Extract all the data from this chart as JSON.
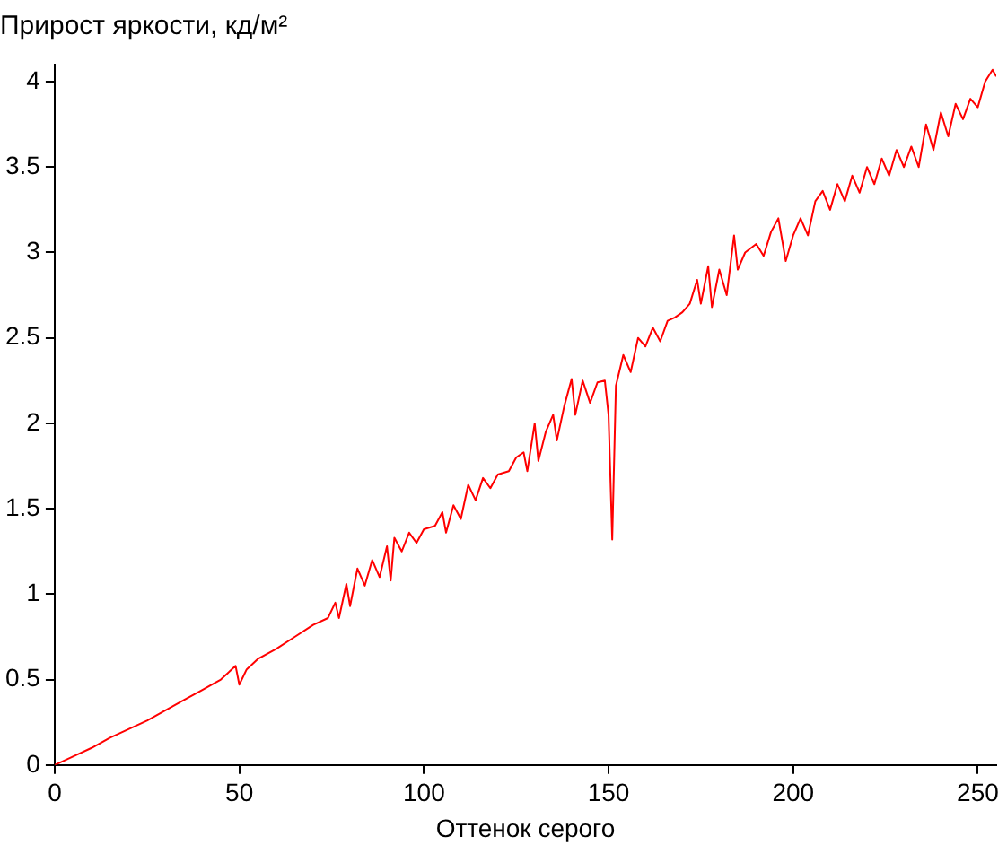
{
  "chart_data": {
    "type": "line",
    "title": "Прирост яркости, кд/м²",
    "xlabel": "Оттенок серого",
    "x": [
      0,
      3,
      6,
      10,
      15,
      20,
      25,
      30,
      35,
      40,
      45,
      49,
      50,
      52,
      55,
      60,
      65,
      70,
      74,
      76,
      77,
      79,
      80,
      82,
      84,
      86,
      88,
      90,
      91,
      92,
      94,
      96,
      98,
      100,
      103,
      105,
      106,
      108,
      110,
      112,
      114,
      116,
      118,
      120,
      123,
      125,
      127,
      128,
      130,
      131,
      133,
      135,
      136,
      138,
      140,
      141,
      143,
      145,
      147,
      149,
      150,
      151,
      152,
      154,
      156,
      158,
      160,
      162,
      164,
      166,
      168,
      170,
      172,
      174,
      175,
      177,
      178,
      180,
      182,
      184,
      185,
      187,
      190,
      192,
      194,
      196,
      198,
      200,
      202,
      204,
      206,
      208,
      210,
      212,
      214,
      216,
      218,
      220,
      222,
      224,
      226,
      228,
      230,
      232,
      234,
      236,
      238,
      240,
      242,
      244,
      246,
      248,
      250,
      252,
      254,
      255
    ],
    "series": [
      {
        "color": "#ff0000",
        "values": [
          0,
          0.03,
          0.06,
          0.1,
          0.16,
          0.21,
          0.26,
          0.32,
          0.38,
          0.44,
          0.5,
          0.58,
          0.47,
          0.56,
          0.62,
          0.68,
          0.75,
          0.82,
          0.86,
          0.95,
          0.86,
          1.06,
          0.93,
          1.15,
          1.05,
          1.2,
          1.1,
          1.28,
          1.08,
          1.33,
          1.25,
          1.36,
          1.3,
          1.38,
          1.4,
          1.48,
          1.36,
          1.52,
          1.44,
          1.64,
          1.55,
          1.68,
          1.62,
          1.7,
          1.72,
          1.8,
          1.83,
          1.72,
          2.0,
          1.78,
          1.95,
          2.05,
          1.9,
          2.1,
          2.26,
          2.05,
          2.25,
          2.12,
          2.24,
          2.25,
          2.05,
          1.32,
          2.22,
          2.4,
          2.3,
          2.5,
          2.45,
          2.56,
          2.48,
          2.6,
          2.62,
          2.65,
          2.7,
          2.84,
          2.7,
          2.92,
          2.68,
          2.9,
          2.75,
          3.1,
          2.9,
          3.0,
          3.05,
          2.98,
          3.12,
          3.2,
          2.95,
          3.1,
          3.2,
          3.1,
          3.3,
          3.36,
          3.25,
          3.4,
          3.3,
          3.45,
          3.35,
          3.5,
          3.4,
          3.55,
          3.45,
          3.6,
          3.5,
          3.62,
          3.5,
          3.75,
          3.6,
          3.82,
          3.68,
          3.87,
          3.78,
          3.9,
          3.85,
          4.0,
          4.07,
          4.03
        ]
      }
    ],
    "xlim": [
      0,
      255
    ],
    "xticks": [
      0,
      50,
      100,
      150,
      200,
      250
    ],
    "ylim": [
      0,
      4.1
    ],
    "yticks": [
      0,
      0.5,
      1,
      1.5,
      2,
      2.5,
      3,
      3.5,
      4
    ],
    "grid": false,
    "legend": false,
    "marker": "none",
    "line_style": "solid"
  }
}
